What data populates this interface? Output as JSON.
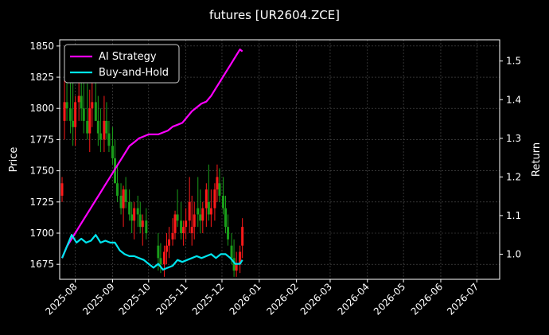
{
  "chart_data": {
    "type": "line",
    "title": "futures [UR2604.ZCE]",
    "xlabel": "",
    "ylabel_left": "Price",
    "ylabel_right": "Return",
    "x_ticks": [
      "2025-08",
      "2025-09",
      "2025-10",
      "2025-11",
      "2025-12",
      "2026-01",
      "2026-02",
      "2026-03",
      "2026-04",
      "2026-05",
      "2026-06",
      "2026-07"
    ],
    "xlim": [
      "2025-07-19",
      "2026-07-20"
    ],
    "y_left_ticks": [
      1675,
      1700,
      1725,
      1750,
      1775,
      1800,
      1825,
      1850
    ],
    "ylim_left": [
      1663,
      1855
    ],
    "y_right_ticks": [
      1.0,
      1.1,
      1.2,
      1.3,
      1.4,
      1.5
    ],
    "ylim_right": [
      0.935,
      1.555
    ],
    "grid": true,
    "legend_position": "top-left",
    "colors": {
      "ai_strategy": "#ff00ff",
      "buy_and_hold": "#00e5ee",
      "candle_up": "#ff1a1a",
      "candle_down": "#1a9e1a",
      "background": "#000000",
      "axes": "#ffffff",
      "grid": "#555555"
    },
    "series": [
      {
        "name": "AI Strategy",
        "axis": "right",
        "x": [
          "2025-07-21",
          "2025-07-25",
          "2025-07-29",
          "2025-08-02",
          "2025-08-06",
          "2025-08-10",
          "2025-08-14",
          "2025-08-18",
          "2025-08-22",
          "2025-08-26",
          "2025-08-30",
          "2025-09-03",
          "2025-09-07",
          "2025-09-11",
          "2025-09-15",
          "2025-09-19",
          "2025-09-23",
          "2025-09-27",
          "2025-10-01",
          "2025-10-05",
          "2025-10-09",
          "2025-10-13",
          "2025-10-17",
          "2025-10-21",
          "2025-10-25",
          "2025-10-29",
          "2025-11-02",
          "2025-11-06",
          "2025-11-10",
          "2025-11-14",
          "2025-11-18",
          "2025-11-22",
          "2025-11-26",
          "2025-11-30",
          "2025-12-04",
          "2025-12-08",
          "2025-12-12",
          "2025-12-16",
          "2025-12-18"
        ],
        "values": [
          0.99,
          1.02,
          1.04,
          1.06,
          1.08,
          1.1,
          1.12,
          1.14,
          1.16,
          1.18,
          1.2,
          1.22,
          1.24,
          1.26,
          1.28,
          1.29,
          1.3,
          1.305,
          1.31,
          1.31,
          1.31,
          1.315,
          1.32,
          1.33,
          1.335,
          1.34,
          1.355,
          1.37,
          1.38,
          1.39,
          1.395,
          1.41,
          1.43,
          1.45,
          1.47,
          1.49,
          1.51,
          1.53,
          1.525
        ]
      },
      {
        "name": "Buy-and-Hold",
        "axis": "right",
        "x": [
          "2025-07-21",
          "2025-07-25",
          "2025-07-29",
          "2025-08-02",
          "2025-08-06",
          "2025-08-10",
          "2025-08-14",
          "2025-08-18",
          "2025-08-22",
          "2025-08-26",
          "2025-08-30",
          "2025-09-03",
          "2025-09-07",
          "2025-09-11",
          "2025-09-15",
          "2025-09-19",
          "2025-09-23",
          "2025-09-27",
          "2025-10-01",
          "2025-10-05",
          "2025-10-09",
          "2025-10-13",
          "2025-10-17",
          "2025-10-21",
          "2025-10-25",
          "2025-10-29",
          "2025-11-02",
          "2025-11-06",
          "2025-11-10",
          "2025-11-14",
          "2025-11-18",
          "2025-11-22",
          "2025-11-26",
          "2025-11-30",
          "2025-12-04",
          "2025-12-08",
          "2025-12-12",
          "2025-12-16",
          "2025-12-18"
        ],
        "values": [
          0.99,
          1.02,
          1.05,
          1.03,
          1.04,
          1.03,
          1.035,
          1.05,
          1.03,
          1.035,
          1.03,
          1.03,
          1.01,
          1.0,
          0.995,
          0.995,
          0.99,
          0.985,
          0.975,
          0.965,
          0.975,
          0.96,
          0.965,
          0.97,
          0.985,
          0.98,
          0.985,
          0.99,
          0.995,
          0.99,
          0.995,
          1.0,
          0.99,
          1.0,
          1.0,
          0.99,
          0.975,
          0.975,
          0.985
        ]
      }
    ],
    "candles": {
      "axis": "left",
      "note": "OHLC candlesticks; red = close above open, green = close below open",
      "x": [
        "2025-07-21",
        "2025-07-23",
        "2025-07-25",
        "2025-07-28",
        "2025-07-30",
        "2025-08-01",
        "2025-08-04",
        "2025-08-06",
        "2025-08-08",
        "2025-08-11",
        "2025-08-13",
        "2025-08-15",
        "2025-08-18",
        "2025-08-20",
        "2025-08-22",
        "2025-08-25",
        "2025-08-27",
        "2025-08-29",
        "2025-09-01",
        "2025-09-03",
        "2025-09-05",
        "2025-09-08",
        "2025-09-10",
        "2025-09-12",
        "2025-09-15",
        "2025-09-17",
        "2025-09-19",
        "2025-09-22",
        "2025-09-24",
        "2025-09-26",
        "2025-09-29",
        "2025-10-09",
        "2025-10-11",
        "2025-10-14",
        "2025-10-16",
        "2025-10-18",
        "2025-10-21",
        "2025-10-23",
        "2025-10-25",
        "2025-10-28",
        "2025-10-30",
        "2025-11-01",
        "2025-11-04",
        "2025-11-06",
        "2025-11-08",
        "2025-11-11",
        "2025-11-13",
        "2025-11-15",
        "2025-11-18",
        "2025-11-20",
        "2025-11-22",
        "2025-11-25",
        "2025-11-27",
        "2025-11-29",
        "2025-12-02",
        "2025-12-04",
        "2025-12-06",
        "2025-12-09",
        "2025-12-11",
        "2025-12-13",
        "2025-12-16",
        "2025-12-18"
      ],
      "open": [
        1730,
        1790,
        1805,
        1800,
        1790,
        1785,
        1805,
        1810,
        1800,
        1790,
        1780,
        1800,
        1805,
        1790,
        1780,
        1775,
        1790,
        1780,
        1770,
        1760,
        1740,
        1730,
        1720,
        1735,
        1725,
        1715,
        1710,
        1720,
        1715,
        1705,
        1710,
        1690,
        1680,
        1675,
        1685,
        1690,
        1695,
        1700,
        1715,
        1710,
        1700,
        1705,
        1710,
        1700,
        1705,
        1720,
        1715,
        1710,
        1720,
        1725,
        1715,
        1720,
        1735,
        1740,
        1730,
        1720,
        1705,
        1690,
        1680,
        1670,
        1675,
        1690
      ],
      "high": [
        1745,
        1835,
        1840,
        1825,
        1830,
        1810,
        1840,
        1835,
        1825,
        1820,
        1815,
        1830,
        1835,
        1810,
        1800,
        1810,
        1805,
        1790,
        1785,
        1775,
        1755,
        1740,
        1738,
        1745,
        1735,
        1725,
        1725,
        1730,
        1725,
        1715,
        1720,
        1700,
        1692,
        1690,
        1700,
        1705,
        1712,
        1718,
        1735,
        1725,
        1710,
        1720,
        1745,
        1730,
        1725,
        1745,
        1735,
        1725,
        1740,
        1755,
        1735,
        1740,
        1755,
        1752,
        1745,
        1730,
        1715,
        1700,
        1695,
        1685,
        1690,
        1712
      ],
      "low": [
        1725,
        1775,
        1790,
        1780,
        1770,
        1770,
        1790,
        1790,
        1780,
        1775,
        1765,
        1785,
        1790,
        1770,
        1765,
        1765,
        1775,
        1765,
        1755,
        1740,
        1725,
        1715,
        1705,
        1720,
        1710,
        1700,
        1695,
        1705,
        1700,
        1690,
        1695,
        1670,
        1668,
        1665,
        1675,
        1680,
        1690,
        1695,
        1705,
        1695,
        1690,
        1695,
        1700,
        1690,
        1695,
        1705,
        1700,
        1700,
        1705,
        1710,
        1705,
        1710,
        1725,
        1725,
        1715,
        1700,
        1690,
        1675,
        1665,
        1665,
        1668,
        1680
      ],
      "close": [
        1740,
        1805,
        1800,
        1790,
        1785,
        1805,
        1810,
        1800,
        1790,
        1780,
        1800,
        1805,
        1790,
        1780,
        1775,
        1790,
        1780,
        1770,
        1760,
        1740,
        1730,
        1720,
        1735,
        1725,
        1715,
        1710,
        1720,
        1715,
        1705,
        1710,
        1700,
        1680,
        1675,
        1685,
        1690,
        1695,
        1700,
        1715,
        1710,
        1700,
        1705,
        1710,
        1725,
        1705,
        1715,
        1715,
        1710,
        1720,
        1735,
        1715,
        1720,
        1735,
        1745,
        1730,
        1720,
        1705,
        1695,
        1680,
        1670,
        1675,
        1685,
        1705
      ]
    }
  }
}
